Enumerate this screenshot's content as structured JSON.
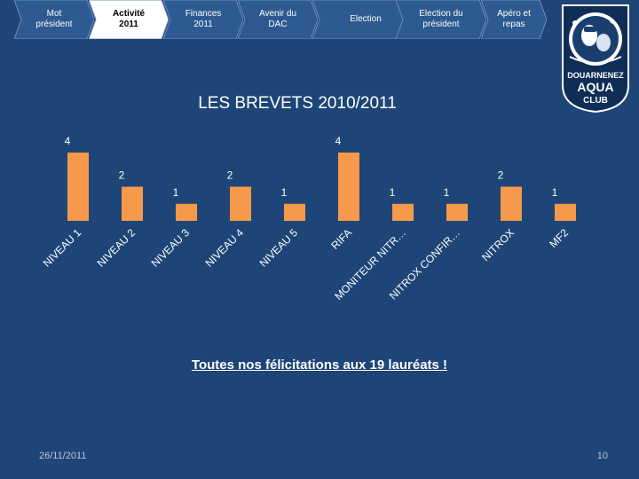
{
  "nav": {
    "tabs": [
      {
        "label": "Mot\nprésident",
        "active": false
      },
      {
        "label": "Activité\n2011",
        "active": true
      },
      {
        "label": "Finances\n2011",
        "active": false
      },
      {
        "label": "Avenir du\nDAC",
        "active": false
      },
      {
        "label": "Election",
        "active": false
      },
      {
        "label": "Election du\nprésident",
        "active": false
      },
      {
        "label": "Apéro et\nrepas",
        "active": false
      }
    ]
  },
  "logo": {
    "alt": "Douarnenez Aqua Club logo",
    "text_line1": "DOUARNENEZ",
    "text_line2": "AQUA",
    "text_line3": "CLUB"
  },
  "chart_data": {
    "type": "bar",
    "title": "LES BREVETS 2010/2011",
    "categories": [
      "NIVEAU 1",
      "NIVEAU 2",
      "NIVEAU 3",
      "NIVEAU 4",
      "NIVEAU 5",
      "RIFA",
      "MONITEUR NITR…",
      "NITROX CONFIR…",
      "NITROX",
      "MF2"
    ],
    "values": [
      4,
      2,
      1,
      2,
      1,
      4,
      1,
      1,
      2,
      1
    ],
    "ylim": [
      0,
      4
    ],
    "xlabel": "",
    "ylabel": "",
    "grid": false,
    "series_color": "#f7994a"
  },
  "caption": "Toutes nos félicitations aux 19 lauréats !",
  "footer": {
    "date": "26/11/2011",
    "page": "10"
  },
  "colors": {
    "background": "#1e4577",
    "tab_fill": "#2c5a91",
    "tab_active": "#ffffff",
    "bar": "#f7994a"
  }
}
